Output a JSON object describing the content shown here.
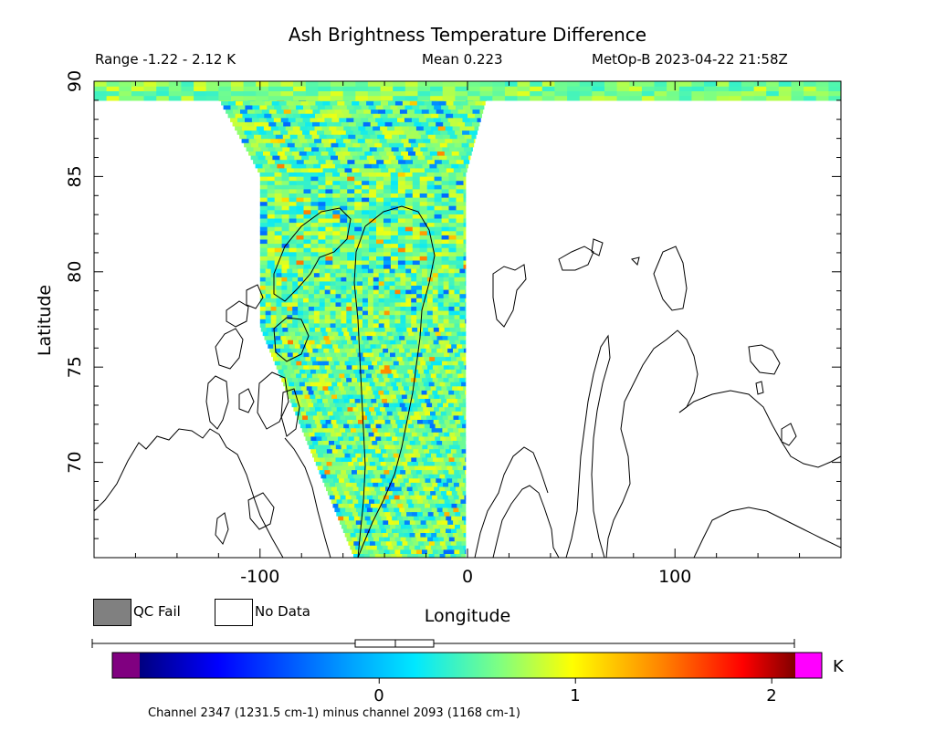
{
  "chart_data": {
    "type": "heatmap",
    "title": "Ash Brightness Temperature Difference",
    "header": {
      "range": "Range -1.22 - 2.12 K",
      "mean": "Mean 0.223",
      "satellite": "MetOp-B 2023-04-22 21:58Z"
    },
    "xlabel": "Longitude",
    "ylabel": "Latitude",
    "xlim": [
      -180,
      180
    ],
    "ylim": [
      65,
      90
    ],
    "xticks": [
      -100,
      0,
      100
    ],
    "xtick_labels": [
      "-100",
      "0",
      "100"
    ],
    "yticks": [
      70,
      75,
      80,
      85,
      90
    ],
    "ytick_labels": [
      "70",
      "75",
      "80",
      "85",
      "90"
    ],
    "swath": {
      "description_values": "brightness temperature difference (K), mostly between 0 and 1",
      "lon_west_edge_at_65": -55,
      "lon_west_edge_at_77": -100,
      "lon_east_edge": -1,
      "polar_cap_lat_min": 89
    },
    "legend": [
      {
        "label": "QC Fail",
        "color": "#808080"
      },
      {
        "label": "No Data",
        "color": "#ffffff"
      }
    ],
    "colorbar": {
      "min": -1.22,
      "max": 2.12,
      "ticks": [
        0,
        1,
        2
      ],
      "tick_labels": [
        "0",
        "1",
        "2"
      ],
      "units": "K",
      "under_color": "#800080",
      "over_color": "#ff00ff",
      "caption": "Channel 2347 (1231.5 cm-1) minus channel 2093 (1168 cm-1)"
    }
  }
}
